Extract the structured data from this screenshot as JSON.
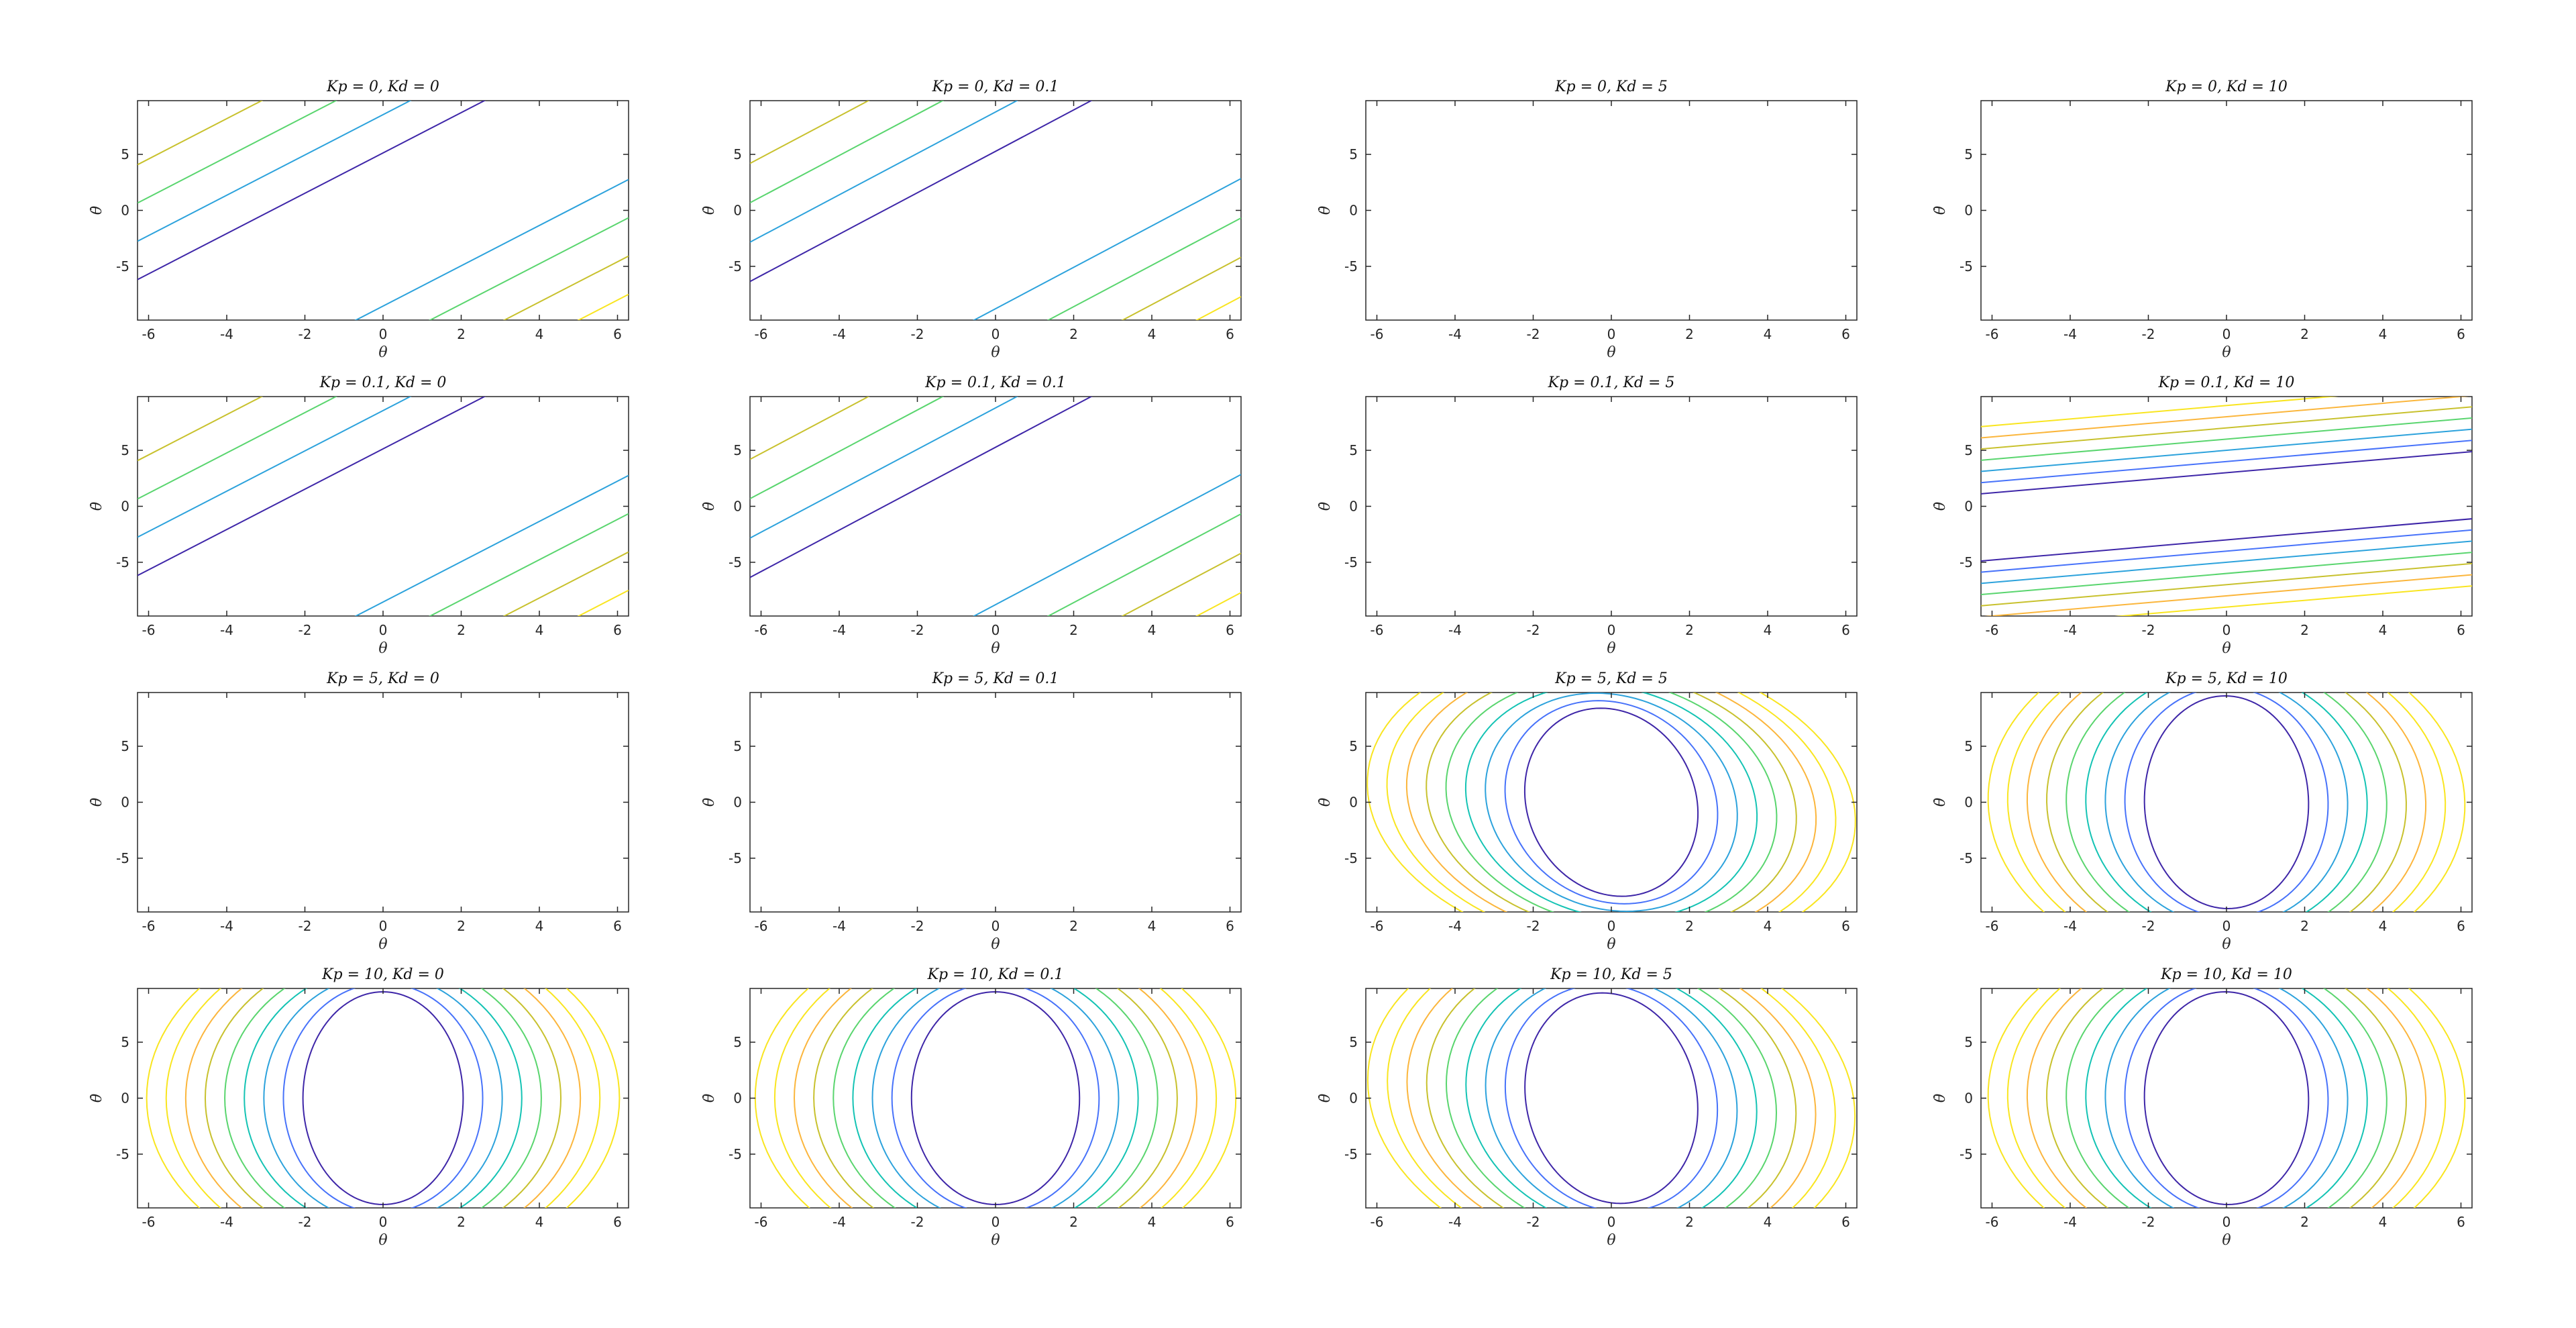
{
  "chart_data": {
    "type": "contour",
    "layout": "4x4 grid",
    "xlabel": "θ",
    "ylabel": "θ̇",
    "xlim": [
      -6.2832,
      6.2832
    ],
    "ylim": [
      -9.8,
      9.8
    ],
    "xticks": [
      -6,
      -4,
      -2,
      0,
      2,
      4,
      6
    ],
    "yticks": [
      5,
      0,
      -5
    ],
    "xtick_labels": [
      "-6",
      "-4",
      "-2",
      "0",
      "2",
      "4",
      "6"
    ],
    "ytick_labels": [
      "5",
      "0",
      "-5"
    ],
    "colormap": [
      "#3e26a8",
      "#4772fa",
      "#2ca2dc",
      "#14c3b4",
      "#59d56e",
      "#c8c12d",
      "#fbb63c",
      "#f9e520"
    ],
    "panels": [
      {
        "title": "Kp = 0, Kd = 0",
        "kp": 0,
        "kd": 0,
        "pattern": "diagonal",
        "slope": 1.8,
        "spacing": 1.9,
        "lines": [
          -4.5,
          -3.5,
          -2.5,
          -1.5,
          2.5,
          3.5,
          4.5,
          5.5
        ]
      },
      {
        "title": "Kp = 0, Kd = 0.1",
        "kp": 0,
        "kd": 0.1,
        "pattern": "diagonal",
        "slope": 1.85,
        "spacing": 1.9,
        "lines": [
          -4.5,
          -3.5,
          -2.5,
          -1.5,
          2.5,
          3.5,
          4.5,
          5.5
        ]
      },
      {
        "title": "Kp = 0, Kd = 5",
        "kp": 0,
        "kd": 5,
        "pattern": "empty"
      },
      {
        "title": "Kp = 0, Kd = 10",
        "kp": 0,
        "kd": 10,
        "pattern": "empty"
      },
      {
        "title": "Kp = 0.1, Kd = 0",
        "kp": 0.1,
        "kd": 0,
        "pattern": "diagonal",
        "slope": 1.8,
        "spacing": 1.9,
        "lines": [
          -4.5,
          -3.5,
          -2.5,
          -1.5,
          2.5,
          3.5,
          4.5,
          5.5
        ]
      },
      {
        "title": "Kp = 0.1, Kd = 0.1",
        "kp": 0.1,
        "kd": 0.1,
        "pattern": "diagonal",
        "slope": 1.85,
        "spacing": 1.9,
        "lines": [
          -4.5,
          -3.5,
          -2.5,
          -1.5,
          2.5,
          3.5,
          4.5,
          5.5
        ]
      },
      {
        "title": "Kp = 0.1, Kd = 5",
        "kp": 0.1,
        "kd": 5,
        "pattern": "empty"
      },
      {
        "title": "Kp = 0.1, Kd = 10",
        "kp": 0.1,
        "kd": 10,
        "pattern": "shallow",
        "slope": 0.3,
        "spacing": 1.0,
        "lines": [
          -9,
          -8,
          -7,
          -6,
          -5,
          -4,
          -3,
          3,
          4,
          5,
          6,
          7,
          8,
          9
        ]
      },
      {
        "title": "Kp = 5, Kd = 0",
        "kp": 5,
        "kd": 0,
        "pattern": "empty"
      },
      {
        "title": "Kp = 5, Kd = 0.1",
        "kp": 5,
        "kd": 0.1,
        "pattern": "empty"
      },
      {
        "title": "Kp = 5, Kd = 5",
        "kp": 5,
        "kd": 5,
        "pattern": "ellipses",
        "rx0": 2.2,
        "ry0": 8.4,
        "step": 0.5,
        "count": 9,
        "tilt": 0.35
      },
      {
        "title": "Kp = 5, Kd = 10",
        "kp": 5,
        "kd": 10,
        "pattern": "ellipses",
        "rx0": 2.1,
        "ry0": 9.5,
        "step": 0.5,
        "count": 9,
        "tilt": 0.05
      },
      {
        "title": "Kp = 10, Kd = 0",
        "kp": 10,
        "kd": 0,
        "pattern": "ellipses",
        "rx0": 2.05,
        "ry0": 9.5,
        "step": 0.5,
        "count": 9,
        "tilt": 0
      },
      {
        "title": "Kp = 10, Kd = 0.1",
        "kp": 10,
        "kd": 0.1,
        "pattern": "ellipses",
        "rx0": 2.15,
        "ry0": 9.5,
        "step": 0.5,
        "count": 9,
        "tilt": 0.01
      },
      {
        "title": "Kp = 10, Kd = 5",
        "kp": 10,
        "kd": 5,
        "pattern": "ellipses",
        "rx0": 2.2,
        "ry0": 9.4,
        "step": 0.5,
        "count": 9,
        "tilt": 0.3
      },
      {
        "title": "Kp = 10, Kd = 10",
        "kp": 10,
        "kd": 10,
        "pattern": "ellipses",
        "rx0": 2.1,
        "ry0": 9.5,
        "step": 0.5,
        "count": 9,
        "tilt": 0.05
      }
    ]
  }
}
